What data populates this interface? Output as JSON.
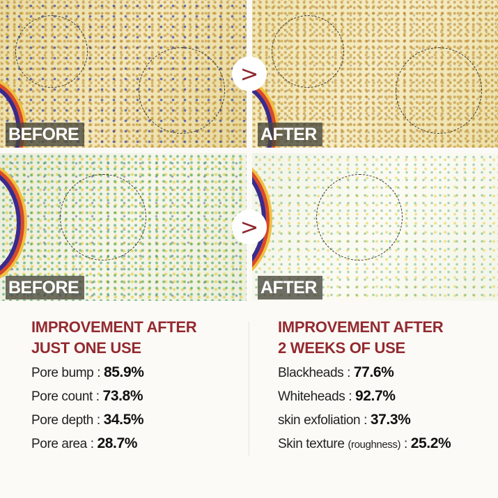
{
  "panels": [
    {
      "label": "BEFORE"
    },
    {
      "label": "AFTER"
    },
    {
      "label": "BEFORE"
    },
    {
      "label": "AFTER"
    }
  ],
  "arrow_glyph": ">",
  "arrow_icon": "chevron-right-icon",
  "colors": {
    "heading": "#932a30",
    "text": "#222222"
  },
  "left": {
    "heading_line1": "IMPROVEMENT AFTER",
    "heading_line2": "JUST ONE USE",
    "stats": [
      {
        "label": "Pore bump :",
        "value": "85.9%"
      },
      {
        "label": "Pore count :",
        "value": "73.8%"
      },
      {
        "label": "Pore depth :",
        "value": "34.5%"
      },
      {
        "label": "Pore area :",
        "value": "28.7%"
      }
    ]
  },
  "right": {
    "heading_line1": "IMPROVEMENT AFTER",
    "heading_line2": "2 WEEKS OF USE",
    "stats": [
      {
        "label": "Blackheads :",
        "value": "77.6%"
      },
      {
        "label": "Whiteheads :",
        "value": "92.7%"
      },
      {
        "label": "skin exfoliation :",
        "value": "37.3%"
      },
      {
        "label": "Skin texture",
        "note": "(roughness)",
        "sep": ":",
        "value": "25.2%"
      }
    ]
  }
}
